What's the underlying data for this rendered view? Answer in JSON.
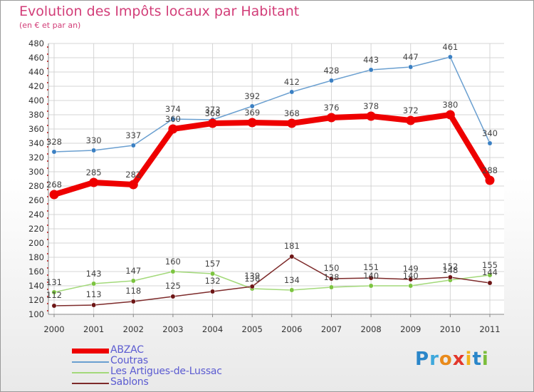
{
  "title": "Evolution des Impôts locaux par Habitant",
  "subtitle": "(en € et par an)",
  "logo": {
    "text": "Proxiti",
    "letters": [
      {
        "ch": "P",
        "color": "#2a86c9"
      },
      {
        "ch": "r",
        "color": "#3fa8dc"
      },
      {
        "ch": "o",
        "color": "#e98a1b"
      },
      {
        "ch": "x",
        "color": "#e2372b"
      },
      {
        "ch": "i",
        "color": "#f2b21a"
      },
      {
        "ch": "t",
        "color": "#2a86c9"
      },
      {
        "ch": "i",
        "color": "#7bbd3b"
      }
    ]
  },
  "chart_data": {
    "type": "line",
    "title": "Evolution des Impôts locaux par Habitant",
    "subtitle": "(en € et par an)",
    "xlabel": "",
    "ylabel": "",
    "x": [
      "2000",
      "2001",
      "2002",
      "2003",
      "2004",
      "2005",
      "2006",
      "2007",
      "2008",
      "2009",
      "2010",
      "2011"
    ],
    "ylim": [
      100,
      480
    ],
    "yticks": [
      100,
      120,
      140,
      160,
      180,
      200,
      220,
      240,
      260,
      280,
      300,
      320,
      340,
      360,
      380,
      400,
      420,
      440,
      460,
      480
    ],
    "grid": true,
    "legend_position": "bottom-left",
    "series": [
      {
        "name": "ABZAC",
        "color": "#ee0000",
        "width": "thick",
        "values": [
          268,
          285,
          282,
          360,
          368,
          369,
          368,
          376,
          378,
          372,
          380,
          288
        ]
      },
      {
        "name": "Coutras",
        "color": "#6a9fd0",
        "marker_color": "#3b80c3",
        "width": "thin",
        "values": [
          328,
          330,
          337,
          374,
          373,
          392,
          412,
          428,
          443,
          447,
          461,
          340
        ]
      },
      {
        "name": "Les Artigues-de-Lussac",
        "color": "#a3d97a",
        "marker_color": "#7cc440",
        "width": "thin",
        "values": [
          131,
          143,
          147,
          160,
          157,
          136,
          134,
          138,
          140,
          140,
          148,
          155
        ]
      },
      {
        "name": "Sablons",
        "color": "#7d2a2a",
        "marker_color": "#6d1515",
        "width": "thin",
        "values": [
          112,
          113,
          118,
          125,
          132,
          139,
          181,
          150,
          151,
          149,
          152,
          144
        ]
      }
    ],
    "data_labels": [
      {
        "series": "ABZAC",
        "labels": [
          "268",
          "285",
          "282",
          "360",
          "368",
          "369",
          "368",
          "376",
          "378",
          "372",
          "380",
          "288"
        ]
      },
      {
        "series": "Coutras",
        "labels": [
          "328",
          "330",
          "337",
          "374",
          "373",
          "392",
          "412",
          "428",
          "443",
          "447",
          "461",
          "340"
        ]
      },
      {
        "series": "Les Artigues-de-Lussac",
        "labels": [
          "131",
          "143",
          "147",
          "160",
          "157",
          "136",
          "134",
          "138",
          "140",
          "140",
          "148",
          "155"
        ]
      },
      {
        "series": "Sablons",
        "labels": [
          "112",
          "113",
          "118",
          "125",
          "132",
          "139",
          "181",
          "150",
          "151",
          "149",
          "152",
          "144"
        ]
      }
    ]
  }
}
